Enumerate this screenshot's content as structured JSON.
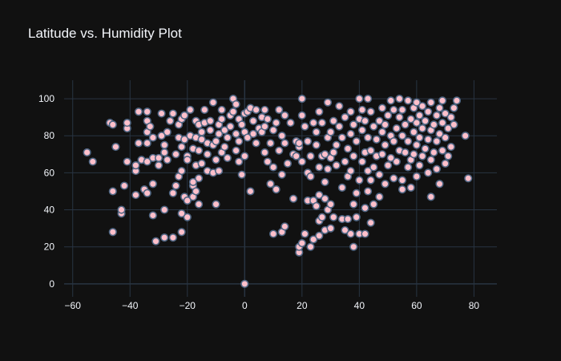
{
  "chart_data": {
    "type": "scatter",
    "title": "Latitude vs. Humidity Plot",
    "xlabel": "",
    "ylabel": "",
    "xlim": [
      -63,
      88
    ],
    "ylim": [
      -7,
      110
    ],
    "x_ticks": [
      -60,
      -40,
      -20,
      0,
      20,
      40,
      60,
      80
    ],
    "y_ticks": [
      0,
      20,
      40,
      60,
      80,
      100
    ],
    "grid": true,
    "colors": {
      "background": "#111111",
      "grid": "#283442",
      "marker_fill": "#ffc0cb",
      "marker_stroke": "#506784",
      "text": "#f2f5fa"
    },
    "series": [
      {
        "points": [
          [
            -55,
            71
          ],
          [
            -53,
            66
          ],
          [
            -47,
            87
          ],
          [
            -46,
            86
          ],
          [
            -46,
            28
          ],
          [
            -46,
            50
          ],
          [
            -45,
            74
          ],
          [
            -43,
            38
          ],
          [
            -43,
            40
          ],
          [
            -42,
            53
          ],
          [
            -41,
            66
          ],
          [
            -41,
            84
          ],
          [
            -41,
            87
          ],
          [
            -38,
            48
          ],
          [
            -38,
            61
          ],
          [
            -38,
            64
          ],
          [
            -37,
            76
          ],
          [
            -37,
            93
          ],
          [
            -36,
            67
          ],
          [
            -35,
            51
          ],
          [
            -34,
            49
          ],
          [
            -34,
            66
          ],
          [
            -34,
            76
          ],
          [
            -34,
            82
          ],
          [
            -34,
            88
          ],
          [
            -34,
            93
          ],
          [
            -33,
            85
          ],
          [
            -32,
            37
          ],
          [
            -32,
            54
          ],
          [
            -32,
            68
          ],
          [
            -32,
            79
          ],
          [
            -31,
            23
          ],
          [
            -30,
            68
          ],
          [
            -30,
            64
          ],
          [
            -29,
            80
          ],
          [
            -29,
            92
          ],
          [
            -28,
            25
          ],
          [
            -28,
            40
          ],
          [
            -28,
            71
          ],
          [
            -28,
            75
          ],
          [
            -27,
            67
          ],
          [
            -27,
            82
          ],
          [
            -26,
            88
          ],
          [
            -25,
            25
          ],
          [
            -25,
            49
          ],
          [
            -25,
            92
          ],
          [
            -24,
            53
          ],
          [
            -24,
            70
          ],
          [
            -23,
            58
          ],
          [
            -23,
            79
          ],
          [
            -23,
            86
          ],
          [
            -22,
            61
          ],
          [
            -22,
            74
          ],
          [
            -22,
            89
          ],
          [
            -22,
            38
          ],
          [
            -22,
            28
          ],
          [
            -21,
            47
          ],
          [
            -21,
            78
          ],
          [
            -21,
            91
          ],
          [
            -20,
            36
          ],
          [
            -20,
            69
          ],
          [
            -20,
            45
          ],
          [
            -20,
            67
          ],
          [
            -19,
            80
          ],
          [
            -19,
            94
          ],
          [
            -18,
            53
          ],
          [
            -18,
            47
          ],
          [
            -18,
            55
          ],
          [
            -18,
            73
          ],
          [
            -17,
            64
          ],
          [
            -17,
            79
          ],
          [
            -17,
            88
          ],
          [
            -17,
            50
          ],
          [
            -16,
            43
          ],
          [
            -16,
            57
          ],
          [
            -16,
            72
          ],
          [
            -16,
            86
          ],
          [
            -15,
            82
          ],
          [
            -15,
            78
          ],
          [
            -15,
            65
          ],
          [
            -14,
            87
          ],
          [
            -14,
            94
          ],
          [
            -13,
            61
          ],
          [
            -13,
            70
          ],
          [
            -13,
            76
          ],
          [
            -12,
            83
          ],
          [
            -12,
            88
          ],
          [
            -11,
            60
          ],
          [
            -11,
            75
          ],
          [
            -11,
            98
          ],
          [
            -10,
            43
          ],
          [
            -10,
            67
          ],
          [
            -10,
            77
          ],
          [
            -9,
            61
          ],
          [
            -9,
            81
          ],
          [
            -9,
            86
          ],
          [
            -8,
            71
          ],
          [
            -8,
            89
          ],
          [
            -8,
            94
          ],
          [
            -7,
            74
          ],
          [
            -7,
            83
          ],
          [
            -6,
            79
          ],
          [
            -6,
            68
          ],
          [
            -5,
            85
          ],
          [
            -5,
            91
          ],
          [
            -4,
            93
          ],
          [
            -4,
            100
          ],
          [
            -3,
            72
          ],
          [
            -3,
            81
          ],
          [
            -3,
            97
          ],
          [
            -2,
            66
          ],
          [
            -2,
            77
          ],
          [
            -2,
            89
          ],
          [
            -1,
            59
          ],
          [
            -1,
            86
          ],
          [
            0,
            0
          ],
          [
            0,
            82
          ],
          [
            0,
            69
          ],
          [
            0,
            92
          ],
          [
            1,
            93
          ],
          [
            1,
            79
          ],
          [
            2,
            50
          ],
          [
            2,
            95
          ],
          [
            3,
            81
          ],
          [
            3,
            88
          ],
          [
            4,
            94
          ],
          [
            4,
            76
          ],
          [
            5,
            84
          ],
          [
            6,
            82
          ],
          [
            6,
            90
          ],
          [
            7,
            71
          ],
          [
            7,
            85
          ],
          [
            7,
            94
          ],
          [
            8,
            66
          ],
          [
            8,
            89
          ],
          [
            9,
            76
          ],
          [
            9,
            54
          ],
          [
            10,
            27
          ],
          [
            10,
            63
          ],
          [
            10,
            83
          ],
          [
            11,
            87
          ],
          [
            11,
            51
          ],
          [
            12,
            94
          ],
          [
            12,
            72
          ],
          [
            13,
            28
          ],
          [
            13,
            59
          ],
          [
            13,
            80
          ],
          [
            14,
            31
          ],
          [
            14,
            76
          ],
          [
            14,
            91
          ],
          [
            15,
            65
          ],
          [
            16,
            87
          ],
          [
            17,
            46
          ],
          [
            17,
            70
          ],
          [
            18,
            77
          ],
          [
            18,
            69
          ],
          [
            19,
            74
          ],
          [
            19,
            17
          ],
          [
            19,
            20
          ],
          [
            19,
            76
          ],
          [
            20,
            22
          ],
          [
            20,
            66
          ],
          [
            20,
            91
          ],
          [
            20,
            100
          ],
          [
            21,
            27
          ],
          [
            21,
            85
          ],
          [
            22,
            45
          ],
          [
            22,
            60
          ],
          [
            22,
            77
          ],
          [
            23,
            20
          ],
          [
            23,
            69
          ],
          [
            23,
            58
          ],
          [
            24,
            24
          ],
          [
            24,
            45
          ],
          [
            24,
            87
          ],
          [
            25,
            42
          ],
          [
            25,
            75
          ],
          [
            25,
            82
          ],
          [
            26,
            26
          ],
          [
            26,
            34
          ],
          [
            26,
            48
          ],
          [
            26,
            63
          ],
          [
            26,
            93
          ],
          [
            27,
            36
          ],
          [
            27,
            69
          ],
          [
            27,
            87
          ],
          [
            28,
            29
          ],
          [
            28,
            46
          ],
          [
            28,
            55
          ],
          [
            28,
            70
          ],
          [
            29,
            40
          ],
          [
            29,
            62
          ],
          [
            29,
            79
          ],
          [
            29,
            98
          ],
          [
            30,
            30
          ],
          [
            30,
            43
          ],
          [
            30,
            68
          ],
          [
            30,
            82
          ],
          [
            31,
            36
          ],
          [
            31,
            71
          ],
          [
            31,
            88
          ],
          [
            32,
            64
          ],
          [
            32,
            75
          ],
          [
            33,
            85
          ],
          [
            33,
            96
          ],
          [
            34,
            35
          ],
          [
            34,
            52
          ],
          [
            34,
            79
          ],
          [
            35,
            29
          ],
          [
            35,
            66
          ],
          [
            35,
            90
          ],
          [
            36,
            35
          ],
          [
            36,
            58
          ],
          [
            36,
            73
          ],
          [
            37,
            27
          ],
          [
            37,
            61
          ],
          [
            37,
            81
          ],
          [
            37,
            93
          ],
          [
            38,
            20
          ],
          [
            38,
            43
          ],
          [
            38,
            69
          ],
          [
            38,
            86
          ],
          [
            39,
            36
          ],
          [
            39,
            49
          ],
          [
            39,
            77
          ],
          [
            40,
            27
          ],
          [
            40,
            56
          ],
          [
            40,
            89
          ],
          [
            40,
            100
          ],
          [
            41,
            66
          ],
          [
            41,
            83
          ],
          [
            41,
            94
          ],
          [
            42,
            27
          ],
          [
            42,
            41
          ],
          [
            42,
            71
          ],
          [
            42,
            88
          ],
          [
            43,
            50
          ],
          [
            43,
            61
          ],
          [
            43,
            79
          ],
          [
            43,
            100
          ],
          [
            44,
            33
          ],
          [
            44,
            56
          ],
          [
            44,
            72
          ],
          [
            44,
            93
          ],
          [
            45,
            43
          ],
          [
            45,
            63
          ],
          [
            45,
            85
          ],
          [
            46,
            69
          ],
          [
            46,
            78
          ],
          [
            47,
            47
          ],
          [
            47,
            59
          ],
          [
            47,
            88
          ],
          [
            48,
            70
          ],
          [
            48,
            82
          ],
          [
            48,
            95
          ],
          [
            49,
            54
          ],
          [
            49,
            75
          ],
          [
            49,
            86
          ],
          [
            50,
            64
          ],
          [
            50,
            91
          ],
          [
            51,
            68
          ],
          [
            51,
            80
          ],
          [
            51,
            99
          ],
          [
            52,
            57
          ],
          [
            52,
            77
          ],
          [
            52,
            94
          ],
          [
            53,
            66
          ],
          [
            53,
            84
          ],
          [
            54,
            72
          ],
          [
            54,
            90
          ],
          [
            54,
            100
          ],
          [
            55,
            56
          ],
          [
            55,
            51
          ],
          [
            55,
            80
          ],
          [
            55,
            94
          ],
          [
            56,
            71
          ],
          [
            56,
            86
          ],
          [
            57,
            63
          ],
          [
            57,
            77
          ],
          [
            57,
            99
          ],
          [
            58,
            52
          ],
          [
            58,
            67
          ],
          [
            58,
            89
          ],
          [
            59,
            70
          ],
          [
            59,
            82
          ],
          [
            59,
            95
          ],
          [
            60,
            58
          ],
          [
            60,
            75
          ],
          [
            60,
            87
          ],
          [
            60,
            98
          ],
          [
            61,
            64
          ],
          [
            61,
            79
          ],
          [
            61,
            91
          ],
          [
            62,
            69
          ],
          [
            62,
            84
          ],
          [
            62,
            96
          ],
          [
            63,
            73
          ],
          [
            63,
            88
          ],
          [
            64,
            60
          ],
          [
            64,
            78
          ],
          [
            64,
            93
          ],
          [
            65,
            47
          ],
          [
            65,
            67
          ],
          [
            65,
            83
          ],
          [
            65,
            98
          ],
          [
            66,
            71
          ],
          [
            66,
            86
          ],
          [
            67,
            62
          ],
          [
            67,
            77
          ],
          [
            67,
            91
          ],
          [
            68,
            54
          ],
          [
            68,
            81
          ],
          [
            68,
            95
          ],
          [
            69,
            72
          ],
          [
            69,
            87
          ],
          [
            69,
            99
          ],
          [
            70,
            65
          ],
          [
            70,
            79
          ],
          [
            70,
            92
          ],
          [
            71,
            69
          ],
          [
            71,
            84
          ],
          [
            72,
            74
          ],
          [
            72,
            90
          ],
          [
            73,
            86
          ],
          [
            73,
            95
          ],
          [
            74,
            99
          ],
          [
            77,
            80
          ],
          [
            78,
            57
          ]
        ]
      }
    ]
  }
}
